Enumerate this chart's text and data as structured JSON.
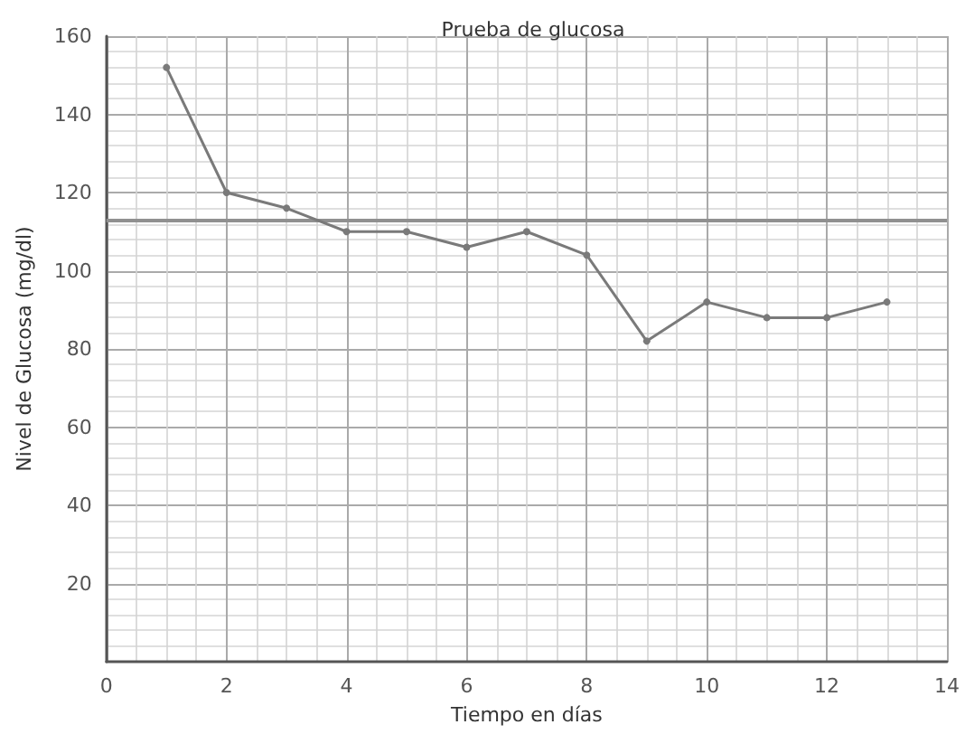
{
  "chart_data": {
    "type": "line",
    "title": "Prueba de glucosa",
    "xlabel": "Tiempo en días",
    "ylabel": "Nivel de Glucosa (mg/dl)",
    "x": [
      1,
      2,
      3,
      4,
      5,
      6,
      7,
      8,
      9,
      10,
      11,
      12,
      13
    ],
    "series": [
      {
        "color": "#7a7a7a",
        "values": [
          152,
          120,
          116,
          110,
          110,
          106,
          110,
          104,
          82,
          92,
          88,
          88,
          92
        ]
      }
    ],
    "xlim": [
      0,
      14
    ],
    "xticks": [
      0,
      2,
      4,
      6,
      8,
      10,
      12,
      14
    ],
    "ylim": [
      0,
      160
    ],
    "yticks": [
      20,
      40,
      60,
      80,
      100,
      120,
      140,
      160
    ],
    "ref_lines": [
      {
        "axis": "y",
        "value": 113,
        "color": "#909090"
      }
    ],
    "grid": true,
    "marker": "circle",
    "line_style": "solid"
  }
}
